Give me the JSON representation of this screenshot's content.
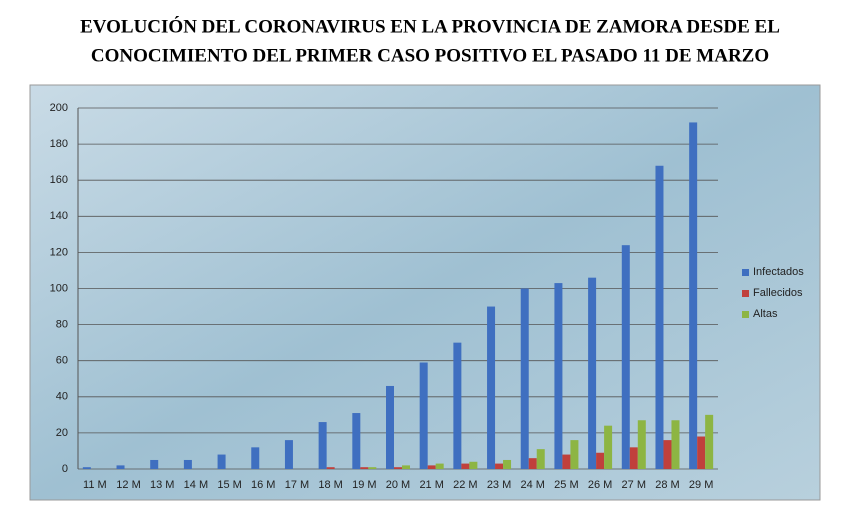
{
  "chart_data": {
    "type": "bar",
    "title": [
      "EVOLUCIÓN DEL CORONAVIRUS EN LA PROVINCIA DE ZAMORA DESDE EL",
      "CONOCIMIENTO DEL PRIMER CASO POSITIVO EL PASADO 11 DE MARZO"
    ],
    "categories": [
      "11 M",
      "12 M",
      "13 M",
      "14 M",
      "15 M",
      "16 M",
      "17 M",
      "18 M",
      "19 M",
      "20 M",
      "21 M",
      "22 M",
      "23 M",
      "24 M",
      "25 M",
      "26 M",
      "27 M",
      "28 M",
      "29 M"
    ],
    "series": [
      {
        "name": "Infectados",
        "color": "#3f6fc0",
        "values": [
          1,
          2,
          5,
          5,
          8,
          12,
          16,
          26,
          31,
          46,
          59,
          70,
          90,
          100,
          103,
          106,
          124,
          168,
          192
        ]
      },
      {
        "name": "Fallecidos",
        "color": "#c0403c",
        "values": [
          0,
          0,
          0,
          0,
          0,
          0,
          0,
          1,
          1,
          1,
          2,
          3,
          3,
          6,
          8,
          9,
          12,
          16,
          18
        ]
      },
      {
        "name": "Altas",
        "color": "#8db543",
        "values": [
          0,
          0,
          0,
          0,
          0,
          0,
          0,
          0,
          1,
          2,
          3,
          4,
          5,
          11,
          16,
          24,
          27,
          27,
          30
        ]
      }
    ],
    "ylim": [
      0,
      200
    ],
    "yticks": [
      0,
      20,
      40,
      60,
      80,
      100,
      120,
      140,
      160,
      180,
      200
    ],
    "grid": true,
    "legend": "right"
  }
}
